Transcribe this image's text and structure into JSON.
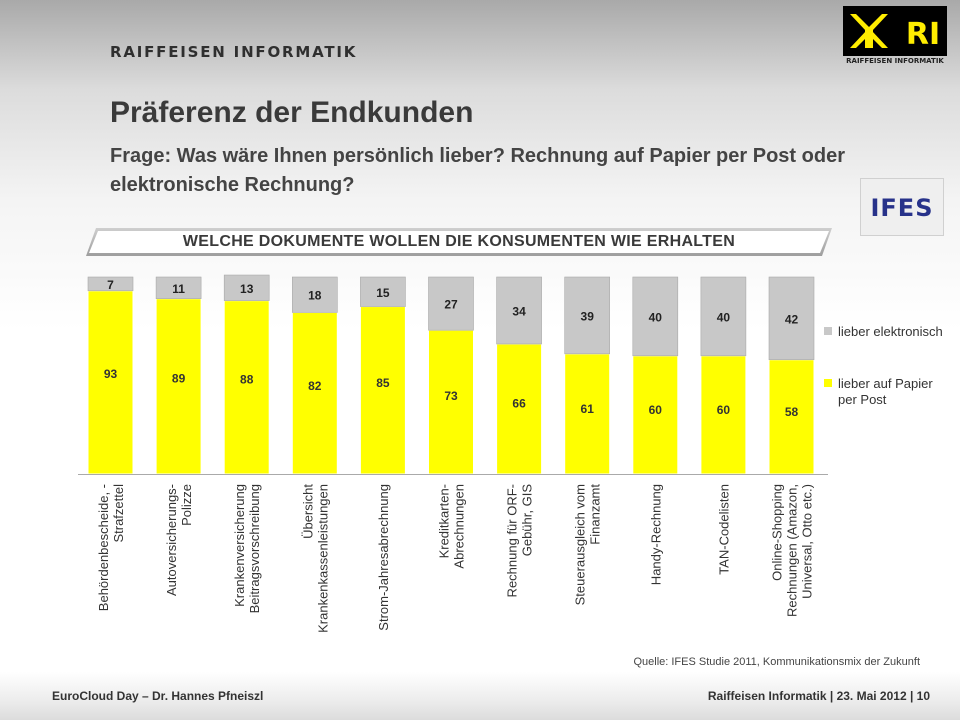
{
  "brand": {
    "name": "RAIFFEISEN INFORMATIK",
    "logo_caption": "RAIFFEISEN INFORMATIK",
    "logo_letters": "RI",
    "yellow": "#ffed00",
    "black": "#000000"
  },
  "slide": {
    "title": "Präferenz der Endkunden",
    "question": "Frage: Was wäre Ihnen persönlich lieber? Rechnung auf Papier per Post oder elektronische Rechnung?",
    "banner": "WELCHE DOKUMENTE WOLLEN DIE KONSUMENTEN WIE ERHALTEN",
    "source_logo": "IFES",
    "source": "Quelle: IFES Studie 2011, Kommunikationsmix der Zukunft"
  },
  "footer": {
    "left": "EuroCloud Day – Dr. Hannes Pfneiszl",
    "right": "Raiffeisen Informatik | 23. Mai 2012 | 10"
  },
  "chart_data": {
    "type": "bar",
    "stacked": true,
    "unit": "%",
    "ylim": [
      0,
      100
    ],
    "grid": false,
    "legend_position": "right",
    "categories": [
      [
        "Behördenbescheide, -",
        "Strafzettel"
      ],
      [
        "Autoversicherungs-",
        "Polizze"
      ],
      [
        "Krankenversicherung",
        "Beitragsvorschreibung"
      ],
      [
        "Übersicht",
        "Krankenkassenleistungen"
      ],
      [
        "Strom-Jahresabrechnung"
      ],
      [
        "Kreditkarten-",
        "Abrechnungen"
      ],
      [
        "Rechnung für ORF-",
        "Gebühr, GIS"
      ],
      [
        "Steuerausgleich vom",
        "Finanzamt"
      ],
      [
        "Handy-Rechnung"
      ],
      [
        "TAN-Codelisten"
      ],
      [
        "Online-Shopping",
        "Rechnungen (Amazon,",
        "Universal, Otto etc.)"
      ]
    ],
    "series": [
      {
        "name": "lieber auf Papier per Post",
        "legend_lines": [
          "lieber auf Papier",
          "per Post"
        ],
        "color": "#ffff00",
        "values": [
          93,
          89,
          88,
          82,
          85,
          73,
          66,
          61,
          60,
          60,
          58
        ]
      },
      {
        "name": "lieber elektronisch",
        "legend_lines": [
          "lieber elektronisch"
        ],
        "color": "#c8c8c8",
        "values": [
          7,
          11,
          13,
          18,
          15,
          27,
          34,
          39,
          40,
          40,
          42
        ]
      }
    ]
  }
}
